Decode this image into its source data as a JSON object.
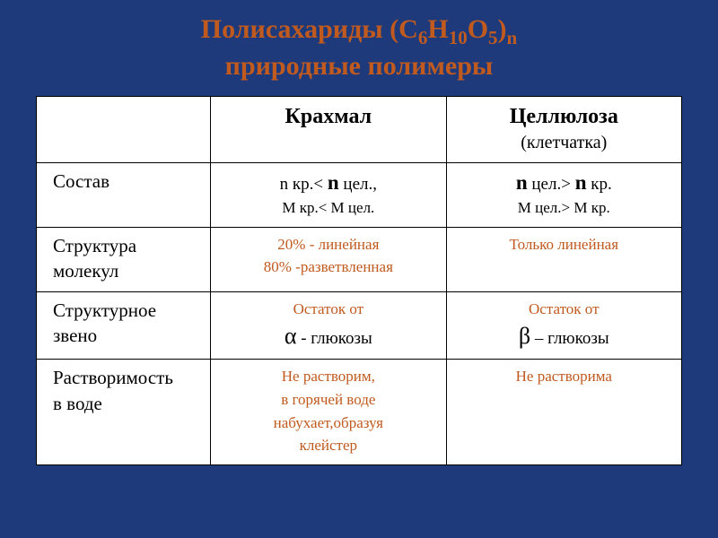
{
  "colors": {
    "background": "#1f3a7a",
    "accent": "#c05a1f",
    "cell_bg": "#ffffff",
    "border": "#000000",
    "text": "#000000"
  },
  "title": {
    "line1_prefix": "Полисахариды (С",
    "sub1": "6",
    "mid1": "Н",
    "sub2": "10",
    "mid2": "О",
    "sub3": "5",
    "suffix1": ")",
    "sub4": "n",
    "line2": "природные полимеры"
  },
  "headers": {
    "starch": "Крахмал",
    "cellulose": "Целлюлоза",
    "cellulose_sub": "(клетчатка)"
  },
  "rows": {
    "composition": {
      "label": "Состав",
      "starch_l1_a": "n кр.< ",
      "starch_l1_b": "n",
      "starch_l1_c": " цел.,",
      "starch_l2": "М кр.< М цел.",
      "cell_l1_a": "n",
      "cell_l1_b": " цел.> ",
      "cell_l1_c": "n",
      "cell_l1_d": " кр.",
      "cell_l2": "М цел.> М кр."
    },
    "structure": {
      "label": "Структура молекул",
      "starch_l1": "20% - линейная",
      "starch_l2": "80% -разветвленная",
      "cell": "Только линейная"
    },
    "unit": {
      "label": "Структурное звено",
      "starch_l1": "Остаток от",
      "starch_greek": "α",
      "starch_rest": " -   глюкозы",
      "cell_l1": "Остаток от",
      "cell_greek": "β",
      "cell_rest": " –   глюкозы"
    },
    "solubility": {
      "label_l1": "Растворимость",
      "label_l2": "в воде",
      "starch_l1": "Не растворим,",
      "starch_l2": "в горячей воде",
      "starch_l3": "набухает,образуя",
      "starch_l4": "клейстер",
      "cell": "Не растворима"
    }
  }
}
